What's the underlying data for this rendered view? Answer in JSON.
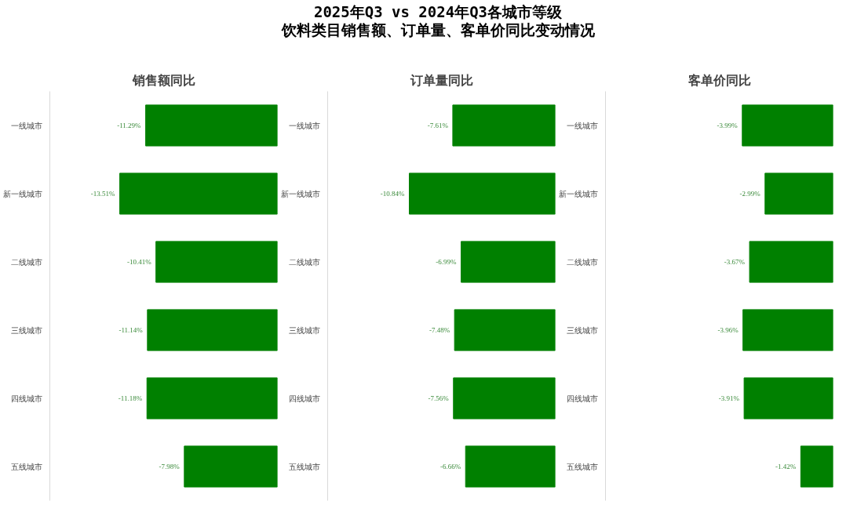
{
  "chart_data": [
    {
      "type": "bar",
      "orientation": "horizontal",
      "title": "销售额同比",
      "categories": [
        "一线城市",
        "新一线城市",
        "二线城市",
        "三线城市",
        "四线城市",
        "五线城市"
      ],
      "values": [
        -11.29,
        -13.51,
        -10.41,
        -11.14,
        -11.18,
        -7.98
      ],
      "value_labels": [
        "-11.29%",
        "-13.51%",
        "-10.41%",
        "-11.14%",
        "-11.18%",
        "-7.98%"
      ],
      "color": "#008000",
      "xlim": [
        -19.5,
        0
      ],
      "tick_labels": "y"
    },
    {
      "type": "bar",
      "orientation": "horizontal",
      "title": "订单量同比",
      "annotations": [
        "2025年Q3 vs 2024年Q3各城市等级",
        "饮料类目销售额、订单量、客单价同比变动情况"
      ],
      "categories": [
        "一线城市",
        "新一线城市",
        "二线城市",
        "三线城市",
        "四线城市",
        "五线城市"
      ],
      "values": [
        -7.61,
        -10.84,
        -6.99,
        -7.48,
        -7.56,
        -6.66
      ],
      "value_labels": [
        "-7.61%",
        "-10.84%",
        "-6.99%",
        "-7.48%",
        "-7.56%",
        "-6.66%"
      ],
      "color": "#008000",
      "xlim": [
        -16.9,
        0
      ],
      "tick_labels": "y"
    },
    {
      "type": "bar",
      "orientation": "horizontal",
      "title": "客单价同比",
      "categories": [
        "一线城市",
        "新一线城市",
        "二线城市",
        "三线城市",
        "四线城市",
        "五线城市"
      ],
      "values": [
        -3.99,
        -2.99,
        -3.67,
        -3.96,
        -3.91,
        -1.42
      ],
      "value_labels": [
        "-3.99%",
        "-2.99%",
        "-3.67%",
        "-3.96%",
        "-3.91%",
        "-1.42%"
      ],
      "color": "#008000",
      "xlim": [
        -10.0,
        0
      ],
      "tick_labels": "y"
    }
  ]
}
